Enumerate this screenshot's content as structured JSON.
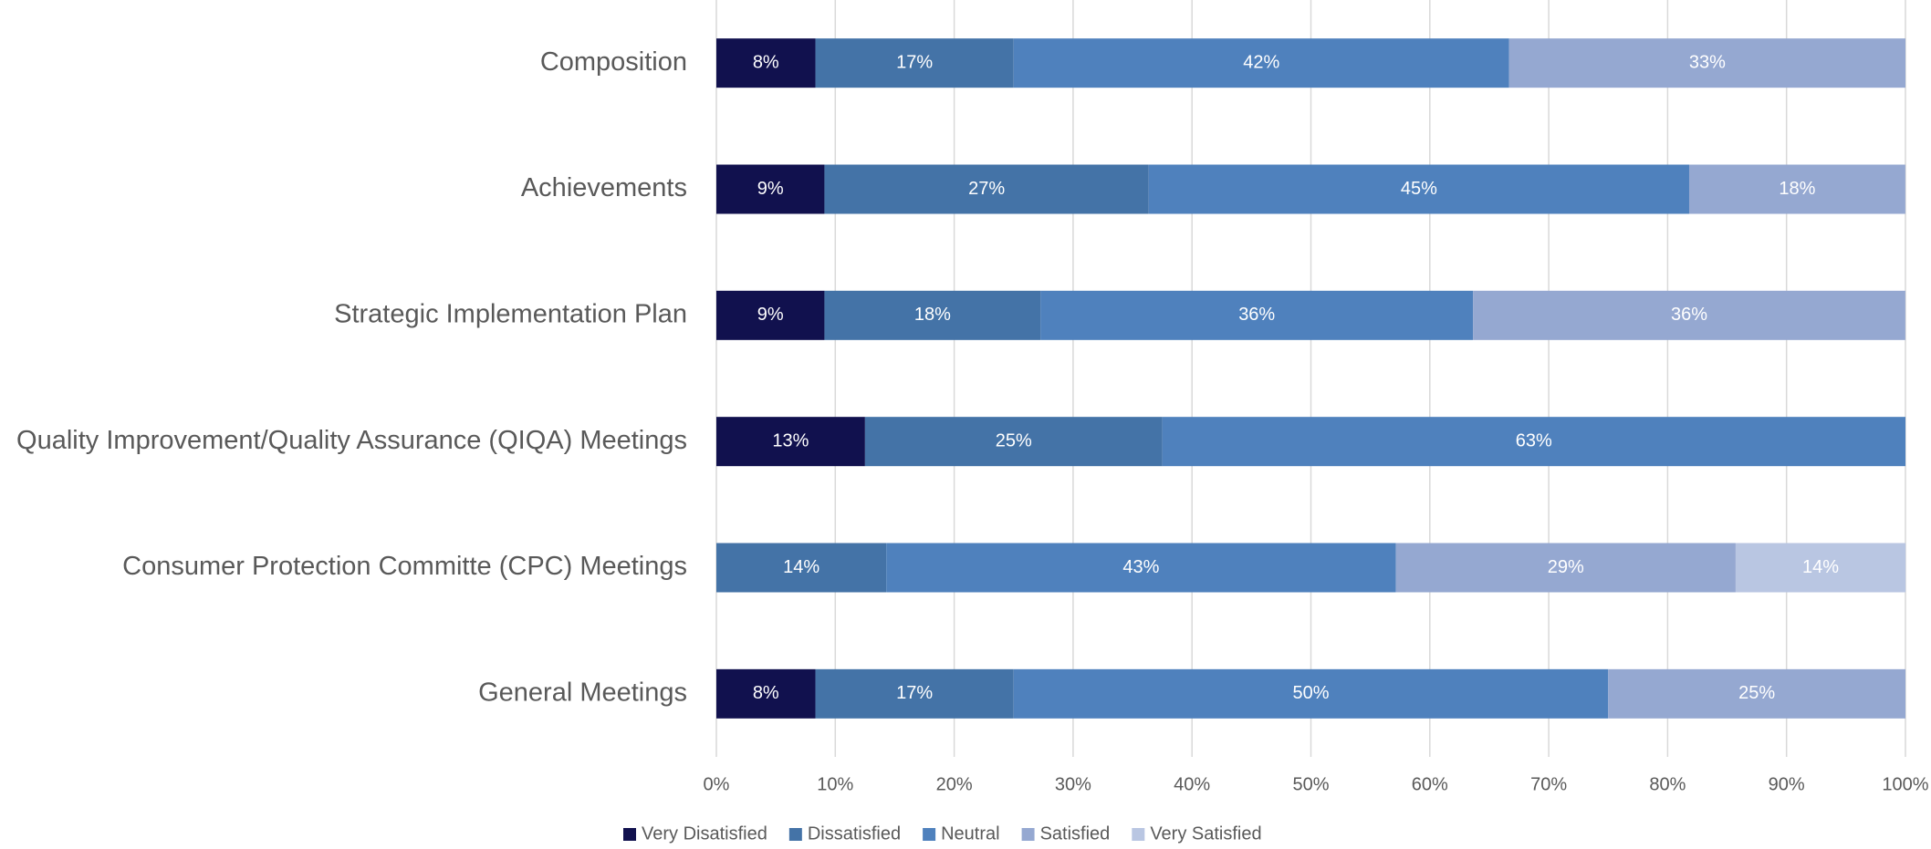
{
  "chart_data": {
    "type": "stacked_bar_horizontal",
    "categories": [
      "Composition",
      "Achievements",
      "Strategic Implementation Plan",
      "Quality Improvement/Quality Assurance (QIQA) Meetings",
      "Consumer Protection Committe (CPC) Meetings",
      "General Meetings"
    ],
    "series": [
      {
        "name": "Very Disatisfied",
        "color": "#11114e",
        "values": [
          8.33,
          9.09,
          9.09,
          12.5,
          0,
          8.33
        ],
        "value_labels": [
          "8%",
          "9%",
          "9%",
          "13%",
          null,
          "8%"
        ]
      },
      {
        "name": "Dissatisfied",
        "color": "#4473a7",
        "values": [
          16.67,
          27.27,
          18.18,
          25,
          14.29,
          16.67
        ],
        "value_labels": [
          "17%",
          "27%",
          "18%",
          "25%",
          "14%",
          "17%"
        ]
      },
      {
        "name": "Neutral",
        "color": "#4f81bd",
        "values": [
          41.67,
          45.45,
          36.36,
          62.5,
          42.86,
          50
        ],
        "value_labels": [
          "42%",
          "45%",
          "36%",
          "63%",
          "43%",
          "50%"
        ]
      },
      {
        "name": "Satisfied",
        "color": "#95a8d1",
        "values": [
          33.33,
          18.18,
          36.36,
          0,
          28.57,
          25
        ],
        "value_labels": [
          "33%",
          "18%",
          "36%",
          null,
          "29%",
          "25%"
        ]
      },
      {
        "name": "Very Satisfied",
        "color": "#b9c6e2",
        "values": [
          0,
          0,
          0,
          0,
          14.29,
          0
        ],
        "value_labels": [
          null,
          null,
          null,
          null,
          "14%",
          null
        ]
      }
    ],
    "xlim": [
      0,
      100
    ],
    "xticks": [
      {
        "value": 0,
        "label": "0%"
      },
      {
        "value": 10,
        "label": "10%"
      },
      {
        "value": 20,
        "label": "20%"
      },
      {
        "value": 30,
        "label": "30%"
      },
      {
        "value": 40,
        "label": "40%"
      },
      {
        "value": 50,
        "label": "50%"
      },
      {
        "value": 60,
        "label": "60%"
      },
      {
        "value": 70,
        "label": "70%"
      },
      {
        "value": 80,
        "label": "80%"
      },
      {
        "value": 90,
        "label": "90%"
      },
      {
        "value": 100,
        "label": "100%"
      }
    ],
    "grid": true,
    "legend": "bottom"
  }
}
